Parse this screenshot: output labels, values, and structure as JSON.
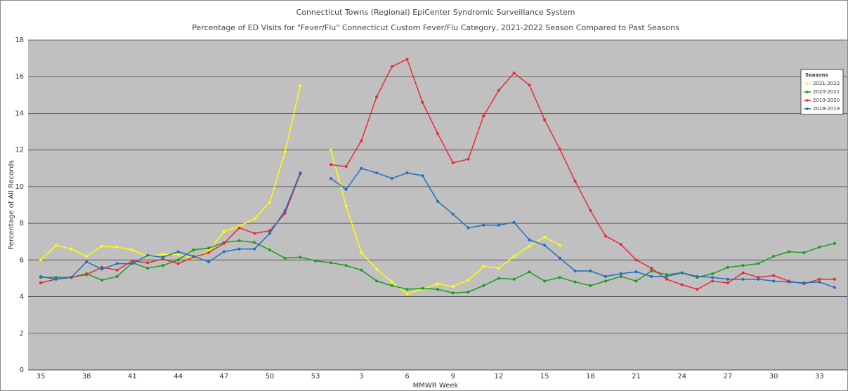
{
  "chart_data": {
    "type": "line",
    "title": "Connecticut Towns (Regional) EpiCenter Syndromic Surveillance System",
    "subtitle": "Percentage of ED Visits for \"Fever/Flu\" Connecticut Custom Fever/Flu Category, 2021-2022 Season Compared to Past Seasons",
    "x_label": "MMWR Week",
    "y_label": "Percentage of All Records",
    "legend_title": "Seasons",
    "legend_position": "top-right",
    "grid": true,
    "categories": [
      "35",
      null,
      null,
      "38",
      null,
      null,
      "41",
      null,
      null,
      "44",
      null,
      null,
      "47",
      null,
      null,
      "50",
      null,
      null,
      "53",
      null,
      null,
      "3",
      null,
      null,
      "6",
      null,
      null,
      "9",
      null,
      null,
      "12",
      null,
      null,
      "15",
      null,
      null,
      "18",
      null,
      null,
      "21",
      null,
      null,
      "24",
      null,
      null,
      "27",
      null,
      null,
      "30",
      null,
      null,
      "33",
      null
    ],
    "ylim": [
      0,
      18
    ],
    "yticks": [
      0,
      2,
      4,
      6,
      8,
      10,
      12,
      14,
      16,
      18
    ],
    "series": [
      {
        "name": "2021-2022",
        "color": "#ffff00",
        "values": [
          6.0,
          6.8,
          6.6,
          6.2,
          6.75,
          6.7,
          6.55,
          6.2,
          6.3,
          6.3,
          6.1,
          6.5,
          7.55,
          7.85,
          8.25,
          9.15,
          11.9,
          15.5,
          null,
          12.0,
          8.95,
          6.4,
          5.5,
          4.8,
          4.15,
          4.4,
          4.7,
          4.55,
          4.9,
          5.65,
          5.55,
          6.2,
          6.75,
          7.25,
          6.8,
          null,
          null,
          null,
          null,
          null,
          null,
          null,
          null,
          null,
          null,
          null,
          null,
          null,
          null,
          null,
          null,
          null,
          null
        ]
      },
      {
        "name": "2020-2021",
        "color": "#1f9a1f",
        "values": [
          5.05,
          5.05,
          5.05,
          5.25,
          4.9,
          5.1,
          5.85,
          5.55,
          5.7,
          6.0,
          6.55,
          6.65,
          6.95,
          7.05,
          6.95,
          6.55,
          6.1,
          6.15,
          5.95,
          5.85,
          5.7,
          5.45,
          4.85,
          4.6,
          4.4,
          4.45,
          4.4,
          4.2,
          4.25,
          4.6,
          5.0,
          4.95,
          5.35,
          4.85,
          5.05,
          4.8,
          4.6,
          4.85,
          5.1,
          4.85,
          5.4,
          5.2,
          5.3,
          5.05,
          5.25,
          5.6,
          5.7,
          5.8,
          6.2,
          6.45,
          6.4,
          6.7,
          6.9
        ]
      },
      {
        "name": "2019-2020",
        "color": "#e8293a",
        "values": [
          4.75,
          4.95,
          5.05,
          5.2,
          5.6,
          5.45,
          5.95,
          5.85,
          6.05,
          5.8,
          6.15,
          6.4,
          6.9,
          7.75,
          7.45,
          7.6,
          8.55,
          10.7,
          null,
          11.2,
          11.1,
          12.5,
          14.9,
          16.55,
          16.95,
          14.6,
          12.9,
          11.3,
          11.5,
          13.85,
          15.25,
          16.2,
          15.55,
          13.65,
          12.05,
          10.3,
          8.7,
          7.3,
          6.85,
          6.0,
          5.55,
          4.95,
          4.65,
          4.4,
          4.85,
          4.75,
          5.3,
          5.05,
          5.15,
          4.85,
          4.7,
          4.95,
          4.95
        ]
      },
      {
        "name": "2018-2019",
        "color": "#1f6fc0",
        "values": [
          5.1,
          4.95,
          5.05,
          5.9,
          5.5,
          5.8,
          5.8,
          6.25,
          6.15,
          6.45,
          6.2,
          5.9,
          6.45,
          6.6,
          6.6,
          7.45,
          8.7,
          10.75,
          null,
          10.45,
          9.85,
          11.0,
          10.75,
          10.45,
          10.75,
          10.6,
          9.2,
          8.5,
          7.75,
          7.9,
          7.9,
          8.05,
          7.1,
          6.8,
          6.1,
          5.4,
          5.4,
          5.1,
          5.25,
          5.35,
          5.1,
          5.1,
          5.3,
          5.1,
          5.05,
          4.95,
          4.95,
          4.95,
          4.85,
          4.8,
          4.75,
          4.8,
          4.5
        ]
      }
    ]
  }
}
